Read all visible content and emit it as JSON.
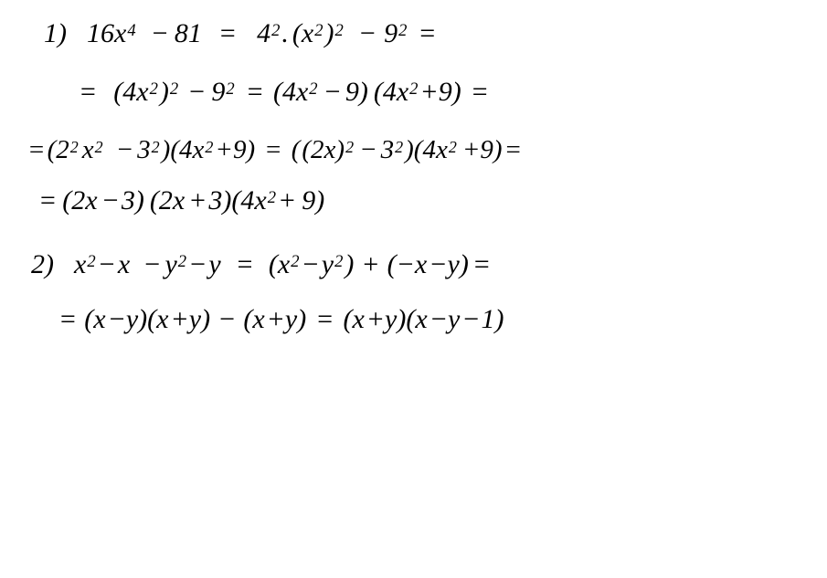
{
  "page": {
    "background_color": "#ffffff",
    "text_color": "#000000",
    "font_family": "cursive",
    "font_style": "italic",
    "base_fontsize_pt": 22
  },
  "problems": [
    {
      "number_label": "1)",
      "lines": [
        {
          "indent": 18,
          "space_after": 30,
          "fontsize": 30,
          "tokens": [
            "16",
            "x",
            "^",
            "4",
            "sp14",
            "−",
            "sp6",
            "8",
            "1",
            "sp18",
            "=",
            "sp22",
            "4",
            "^",
            "2",
            ".",
            "sp4",
            "(",
            "x",
            "^",
            "2",
            ")",
            "^",
            "2",
            "sp14",
            "−",
            "sp8",
            "9",
            "^",
            "2",
            "sp10",
            "="
          ]
        },
        {
          "indent": 56,
          "space_after": 30,
          "fontsize": 30,
          "tokens": [
            "=",
            "sp18",
            "(",
            "4",
            "x",
            "^",
            "2",
            ")",
            "^",
            "2",
            "sp8",
            "−",
            "sp6",
            "9",
            "^",
            "2",
            "sp10",
            "=",
            "sp10",
            "(",
            "4",
            "x",
            "^",
            "2",
            "sp4",
            "−",
            "sp4",
            "9",
            ")",
            "sp6",
            "(",
            "4",
            "x",
            "^",
            "2",
            "+",
            "9",
            ")",
            "sp10",
            "="
          ]
        },
        {
          "indent": 0,
          "space_after": 22,
          "fontsize": 29,
          "tokens": [
            "=",
            "sp2",
            "(",
            "2",
            "^",
            "2",
            "sp2",
            "x",
            "^",
            "2",
            "sp12",
            "−",
            "sp4",
            "3",
            "^",
            "2",
            ")",
            "(",
            "4",
            "x",
            "^",
            "2",
            "+",
            "9",
            ")",
            "sp10",
            "=",
            "sp10",
            "(",
            "sp2",
            "(",
            "2",
            "x",
            ")",
            "^",
            "2",
            "sp4",
            "−",
            "sp4",
            "3",
            "^",
            "2",
            ")",
            "(",
            "4",
            "x",
            "^",
            "2",
            "sp4",
            "+",
            "9",
            ")",
            "sp2",
            "="
          ]
        },
        {
          "indent": 12,
          "space_after": 36,
          "fontsize": 30,
          "tokens": [
            "=",
            "sp6",
            "(",
            "2",
            "x",
            "sp4",
            "−",
            "sp2",
            "3",
            ")",
            "sp6",
            "(",
            "2",
            "x",
            "sp4",
            "+",
            "sp2",
            "3",
            ")",
            "(",
            "4",
            "x",
            "^",
            "2",
            "+",
            "sp6",
            "9",
            ")"
          ]
        }
      ]
    },
    {
      "number_label": "2)",
      "lines": [
        {
          "indent": 4,
          "space_after": 26,
          "fontsize": 30,
          "tokens": [
            "x",
            "^",
            "2",
            "−",
            "sp2",
            "x",
            "sp14",
            "−",
            "sp4",
            "y",
            "^",
            "2",
            "−",
            "sp2",
            "y",
            "sp16",
            "=",
            "sp16",
            "(",
            "x",
            "^",
            "2",
            "−",
            "sp2",
            "y",
            "^",
            "2",
            ")",
            "sp8",
            "+",
            "sp8",
            "(",
            "−",
            "x",
            "sp2",
            "−",
            "y",
            ")",
            "sp4",
            "="
          ]
        },
        {
          "indent": 34,
          "space_after": 0,
          "fontsize": 30,
          "tokens": [
            "=",
            "sp8",
            "(",
            "x",
            "sp2",
            "−",
            "y",
            ")",
            "(",
            "x",
            "sp2",
            "+",
            "y",
            ")",
            "sp8",
            "−",
            "sp8",
            "(",
            "x",
            "sp2",
            "+",
            "y",
            ")",
            "sp10",
            "=",
            "sp10",
            "(",
            "x",
            "sp2",
            "+",
            "y",
            ")",
            "(",
            "x",
            "sp2",
            "−",
            "y",
            "sp2",
            "−",
            "sp1",
            "1",
            ")"
          ]
        }
      ]
    }
  ]
}
